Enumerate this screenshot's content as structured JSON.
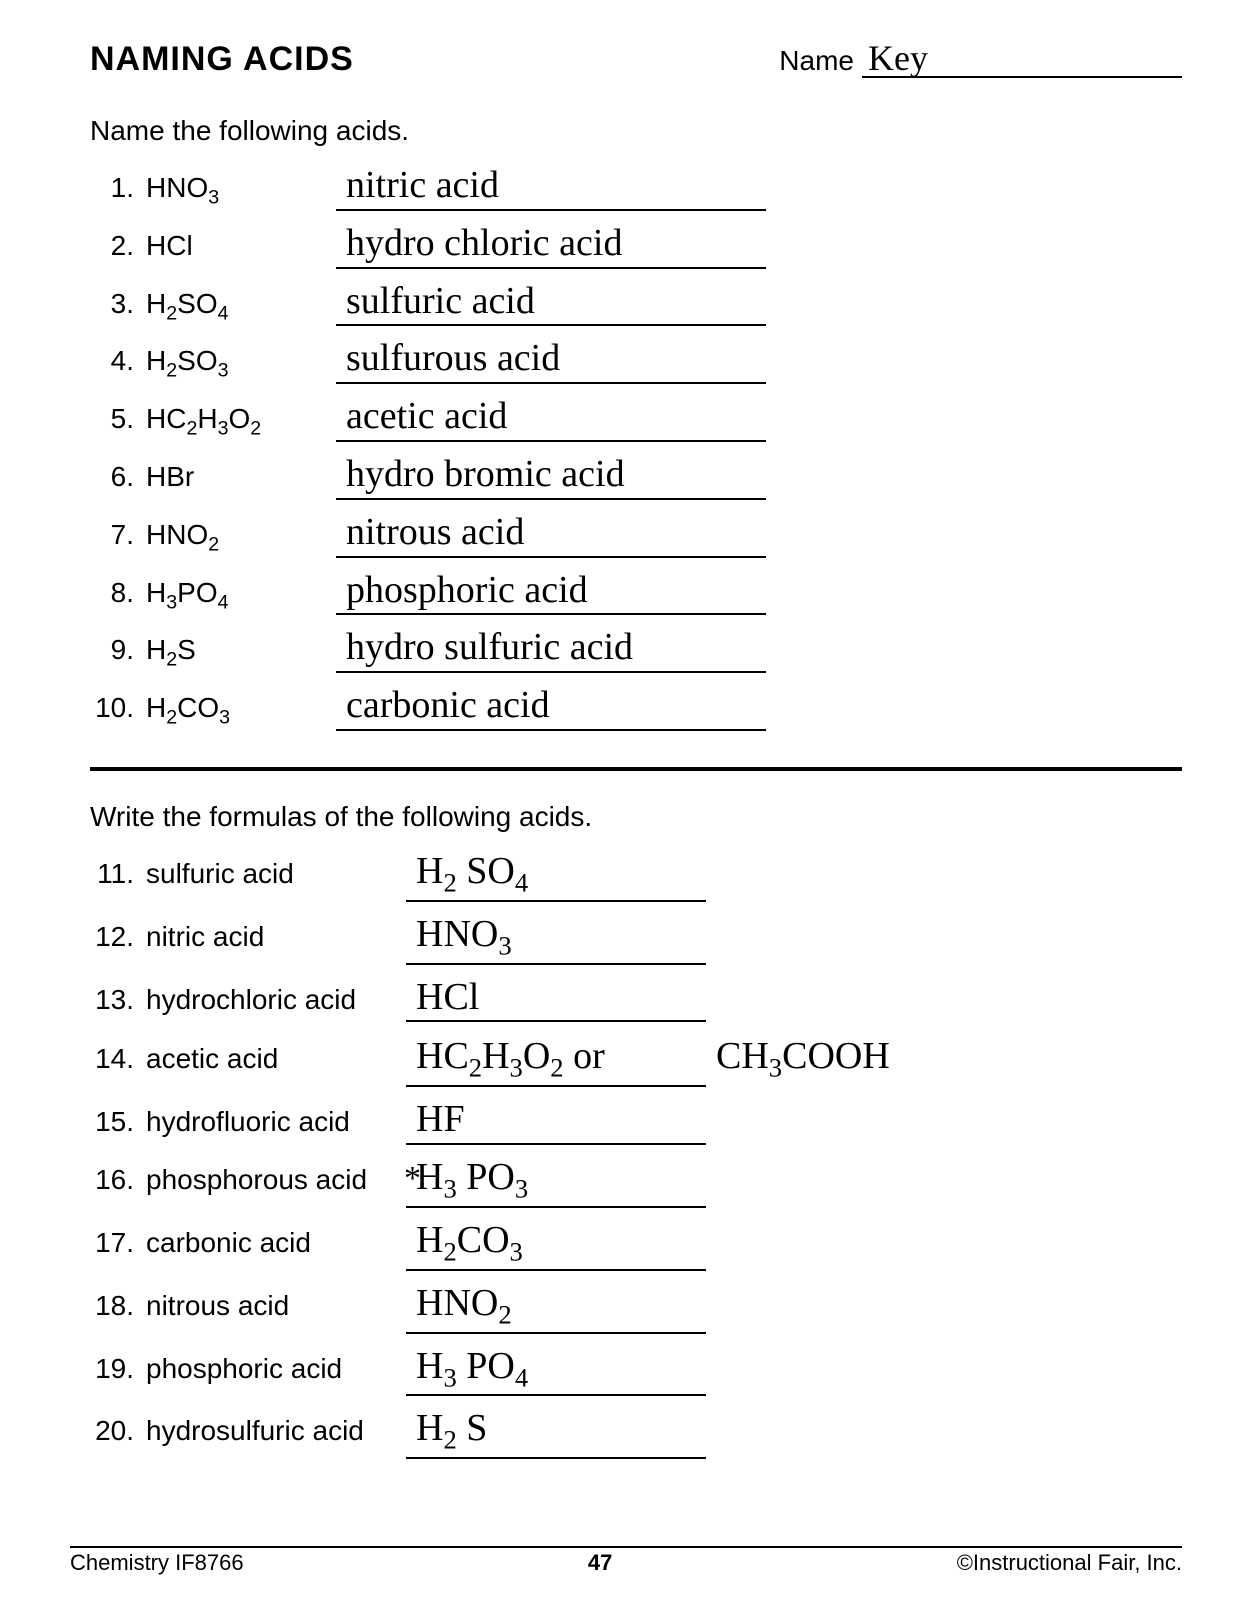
{
  "header": {
    "title": "NAMING ACIDS",
    "name_label": "Name",
    "name_value": "Key"
  },
  "section1": {
    "instructions": "Name the following acids.",
    "items": [
      {
        "n": "1.",
        "formula_html": "HNO<sub>3</sub>",
        "answer": "nitric acid"
      },
      {
        "n": "2.",
        "formula_html": "HCl",
        "answer": "hydro chloric acid"
      },
      {
        "n": "3.",
        "formula_html": "H<sub>2</sub>SO<sub>4</sub>",
        "answer": "sulfuric acid"
      },
      {
        "n": "4.",
        "formula_html": "H<sub>2</sub>SO<sub>3</sub>",
        "answer": "sulfurous acid"
      },
      {
        "n": "5.",
        "formula_html": "HC<sub>2</sub>H<sub>3</sub>O<sub>2</sub>",
        "answer": "acetic acid"
      },
      {
        "n": "6.",
        "formula_html": "HBr",
        "answer": "hydro bromic acid"
      },
      {
        "n": "7.",
        "formula_html": "HNO<sub>2</sub>",
        "answer": "nitrous acid"
      },
      {
        "n": "8.",
        "formula_html": "H<sub>3</sub>PO<sub>4</sub>",
        "answer": "phosphoric acid"
      },
      {
        "n": "9.",
        "formula_html": "H<sub>2</sub>S",
        "answer": "hydro sulfuric acid"
      },
      {
        "n": "10.",
        "formula_html": "H<sub>2</sub>CO<sub>3</sub>",
        "answer": "carbonic acid"
      }
    ]
  },
  "section2": {
    "instructions": "Write the formulas of the following acids.",
    "items": [
      {
        "n": "11.",
        "word": "sulfuric acid",
        "answer_html": "H<sub>2</sub> SO<sub>4</sub>"
      },
      {
        "n": "12.",
        "word": "nitric acid",
        "answer_html": "HNO<sub>3</sub>"
      },
      {
        "n": "13.",
        "word": "hydrochloric acid",
        "answer_html": "HCl"
      },
      {
        "n": "14.",
        "word": "acetic acid",
        "answer_html": "HC<sub>2</sub>H<sub>3</sub>O<sub>2</sub>  or",
        "extra_html": "CH<sub>3</sub>COOH"
      },
      {
        "n": "15.",
        "word": "hydrofluoric acid",
        "answer_html": "HF"
      },
      {
        "n": "16.",
        "word": "phosphorous acid",
        "answer_html": "H<sub>3</sub> PO<sub>3</sub>",
        "prefix": "*"
      },
      {
        "n": "17.",
        "word": "carbonic acid",
        "answer_html": "H<sub>2</sub>CO<sub>3</sub>"
      },
      {
        "n": "18.",
        "word": "nitrous acid",
        "answer_html": "HNO<sub>2</sub>"
      },
      {
        "n": "19.",
        "word": "phosphoric acid",
        "answer_html": "H<sub>3</sub> PO<sub>4</sub>"
      },
      {
        "n": "20.",
        "word": "hydrosulfuric acid",
        "answer_html": "H<sub>2</sub> S"
      }
    ]
  },
  "footer": {
    "left": "Chemistry IF8766",
    "page": "47",
    "right": "©Instructional Fair, Inc."
  }
}
